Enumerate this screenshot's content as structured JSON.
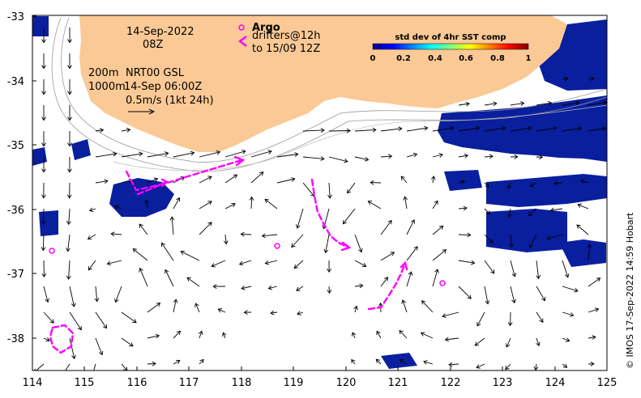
{
  "map": {
    "date_line": "14-Sep-2022",
    "time_line": "08Z",
    "depth_200": "200m",
    "depth_1000": "1000m",
    "product": "NRT00 GSL",
    "product_time": "14-Sep 06:00Z",
    "scale_label": "0.5m/s (1kt 24h)",
    "argo_label": "Argo",
    "drifters_line1": "drifters@12h",
    "drifters_line2": "to 15/09 12Z",
    "colorbar_title": "std dev of 4hr SST comp",
    "colorbar_ticks": [
      "0",
      "0.2",
      "0.4",
      "0.6",
      "0.8",
      "1"
    ],
    "credit": "© IMOS 17-Sep-2022 14:59 Hobart",
    "x_ticks": [
      "114",
      "115",
      "116",
      "117",
      "118",
      "119",
      "120",
      "121",
      "122",
      "123",
      "124",
      "125"
    ],
    "y_ticks": [
      "-33",
      "-34",
      "-35",
      "-36",
      "-37",
      "-38"
    ],
    "colors": {
      "land": "#fbc995",
      "sst_dark": "#0a1f9e",
      "drifter": "#ff00ff",
      "argo": "#ff00ff",
      "arrow": "#000000"
    }
  }
}
